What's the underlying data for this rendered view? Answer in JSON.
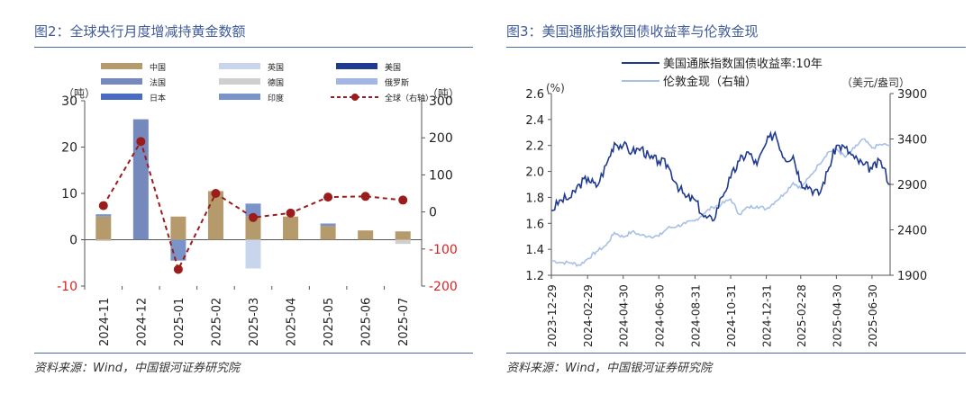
{
  "left": {
    "title": "图2：全球央行月度增减持黄金数额",
    "source": "资料来源：Wind，中国银河证券研究院",
    "chart_data": {
      "type": "bar",
      "stacked": true,
      "categories": [
        "2024-11",
        "2024-12",
        "2025-01",
        "2025-02",
        "2025-03",
        "2025-04",
        "2025-05",
        "2025-06",
        "2025-07"
      ],
      "ylabel": "（吨）",
      "ylabel_right": "（吨）",
      "ylim": [
        -10,
        30
      ],
      "ylim_right": [
        -200,
        300
      ],
      "yticks": [
        -10,
        0,
        10,
        20,
        30
      ],
      "yticks_right": [
        -200,
        -100,
        0,
        100,
        200,
        300
      ],
      "legend_position": "top",
      "series": [
        {
          "name": "中国",
          "color": "#b59a6b",
          "axis": "left",
          "values": [
            5,
            0,
            5,
            10.5,
            5,
            5,
            3,
            2,
            1.8
          ]
        },
        {
          "name": "英国",
          "color": "#c9d5ec",
          "axis": "left",
          "values": [
            0,
            0,
            0,
            0,
            -6.2,
            0,
            0,
            0,
            0
          ]
        },
        {
          "name": "美国",
          "color": "#1f3a8f",
          "axis": "left",
          "values": [
            0,
            0,
            0,
            0,
            0,
            0,
            0,
            0,
            0
          ]
        },
        {
          "name": "法国",
          "color": "#7689bd",
          "axis": "left",
          "values": [
            0,
            26,
            0,
            0,
            0,
            0,
            0,
            0,
            0
          ]
        },
        {
          "name": "德国",
          "color": "#cfcfcf",
          "axis": "left",
          "values": [
            -0.3,
            0,
            0,
            0,
            0,
            0,
            0,
            0,
            -0.9
          ]
        },
        {
          "name": "俄罗斯",
          "color": "#a3b6e3",
          "axis": "left",
          "values": [
            0,
            0,
            0,
            0,
            0,
            0,
            0,
            0,
            0
          ]
        },
        {
          "name": "日本",
          "color": "#4a6cc0",
          "axis": "left",
          "values": [
            0,
            0,
            0,
            0,
            0,
            0,
            0,
            0,
            0
          ]
        },
        {
          "name": "印度",
          "color": "#7a93c9",
          "axis": "left",
          "values": [
            0.5,
            0,
            -4.5,
            0,
            2.8,
            0,
            0.5,
            0,
            0
          ]
        },
        {
          "name": "全球（右轴）",
          "color": "#9b1c1c",
          "axis": "right",
          "type": "line",
          "values": [
            17,
            190,
            -155,
            50,
            -15,
            -3,
            40,
            42,
            32
          ]
        }
      ]
    }
  },
  "right": {
    "title": "图3：美国通胀指数国债收益率与伦敦金现",
    "source": "资料来源：Wind，中国银河证券研究院",
    "chart_data": {
      "type": "line",
      "ylabel": "(%)",
      "ylabel_right": "（美元/盎司）",
      "ylim": [
        1.2,
        2.6
      ],
      "ylim_right": [
        1900,
        3900
      ],
      "yticks": [
        "1.2",
        "1.4",
        "1.6",
        "1.8",
        "2.0",
        "2.2",
        "2.4",
        "2.6"
      ],
      "yticks_right": [
        1900,
        2400,
        2900,
        3400,
        3900
      ],
      "xticks": [
        "2023-12-29",
        "2024-02-29",
        "2024-04-30",
        "2024-06-30",
        "2024-08-31",
        "2024-10-31",
        "2024-12-31",
        "2025-02-28",
        "2025-04-30",
        "2025-06-30"
      ],
      "x_range": [
        "2023-12-29",
        "2025-07-31"
      ],
      "legend_position": "top",
      "series": [
        {
          "name": "美国通胀指数国债收益率:10年",
          "color": "#1f3a8f",
          "axis": "left",
          "x": [
            "2023-12-29",
            "2024-01-15",
            "2024-02-01",
            "2024-02-15",
            "2024-03-01",
            "2024-03-15",
            "2024-04-01",
            "2024-04-15",
            "2024-04-30",
            "2024-05-15",
            "2024-05-31",
            "2024-06-15",
            "2024-06-30",
            "2024-07-15",
            "2024-07-31",
            "2024-08-15",
            "2024-08-31",
            "2024-09-15",
            "2024-09-30",
            "2024-10-15",
            "2024-10-31",
            "2024-11-15",
            "2024-11-30",
            "2024-12-15",
            "2024-12-31",
            "2025-01-15",
            "2025-01-31",
            "2025-02-15",
            "2025-02-28",
            "2025-03-15",
            "2025-03-31",
            "2025-04-15",
            "2025-04-30",
            "2025-05-15",
            "2025-05-31",
            "2025-06-15",
            "2025-06-30",
            "2025-07-15",
            "2025-07-31"
          ],
          "values": [
            1.7,
            1.78,
            1.8,
            1.9,
            1.95,
            1.88,
            2.05,
            2.22,
            2.2,
            2.15,
            2.18,
            2.1,
            2.08,
            2.05,
            1.9,
            1.8,
            1.78,
            1.65,
            1.62,
            1.8,
            1.95,
            2.08,
            2.15,
            2.05,
            2.22,
            2.3,
            2.1,
            2.12,
            1.92,
            1.88,
            1.82,
            2.0,
            2.2,
            2.18,
            2.1,
            2.05,
            2.02,
            2.08,
            1.9
          ]
        },
        {
          "name": "伦敦金现（右轴）",
          "color": "#a8c0e6",
          "axis": "right",
          "x": [
            "2023-12-29",
            "2024-01-15",
            "2024-02-01",
            "2024-02-15",
            "2024-03-01",
            "2024-03-15",
            "2024-04-01",
            "2024-04-15",
            "2024-04-30",
            "2024-05-15",
            "2024-05-31",
            "2024-06-15",
            "2024-06-30",
            "2024-07-15",
            "2024-07-31",
            "2024-08-15",
            "2024-08-31",
            "2024-09-15",
            "2024-09-30",
            "2024-10-15",
            "2024-10-31",
            "2024-11-15",
            "2024-11-30",
            "2024-12-15",
            "2024-12-31",
            "2025-01-15",
            "2025-01-31",
            "2025-02-15",
            "2025-02-28",
            "2025-03-15",
            "2025-03-31",
            "2025-04-15",
            "2025-04-30",
            "2025-05-15",
            "2025-05-31",
            "2025-06-15",
            "2025-06-30",
            "2025-07-15",
            "2025-07-31"
          ],
          "values": [
            2062,
            2040,
            2038,
            2010,
            2085,
            2160,
            2230,
            2370,
            2320,
            2380,
            2340,
            2330,
            2330,
            2420,
            2440,
            2470,
            2500,
            2580,
            2650,
            2680,
            2740,
            2570,
            2650,
            2660,
            2630,
            2710,
            2800,
            2920,
            2860,
            2980,
            3120,
            3250,
            3290,
            3200,
            3300,
            3400,
            3300,
            3340,
            3330
          ]
        }
      ]
    }
  }
}
